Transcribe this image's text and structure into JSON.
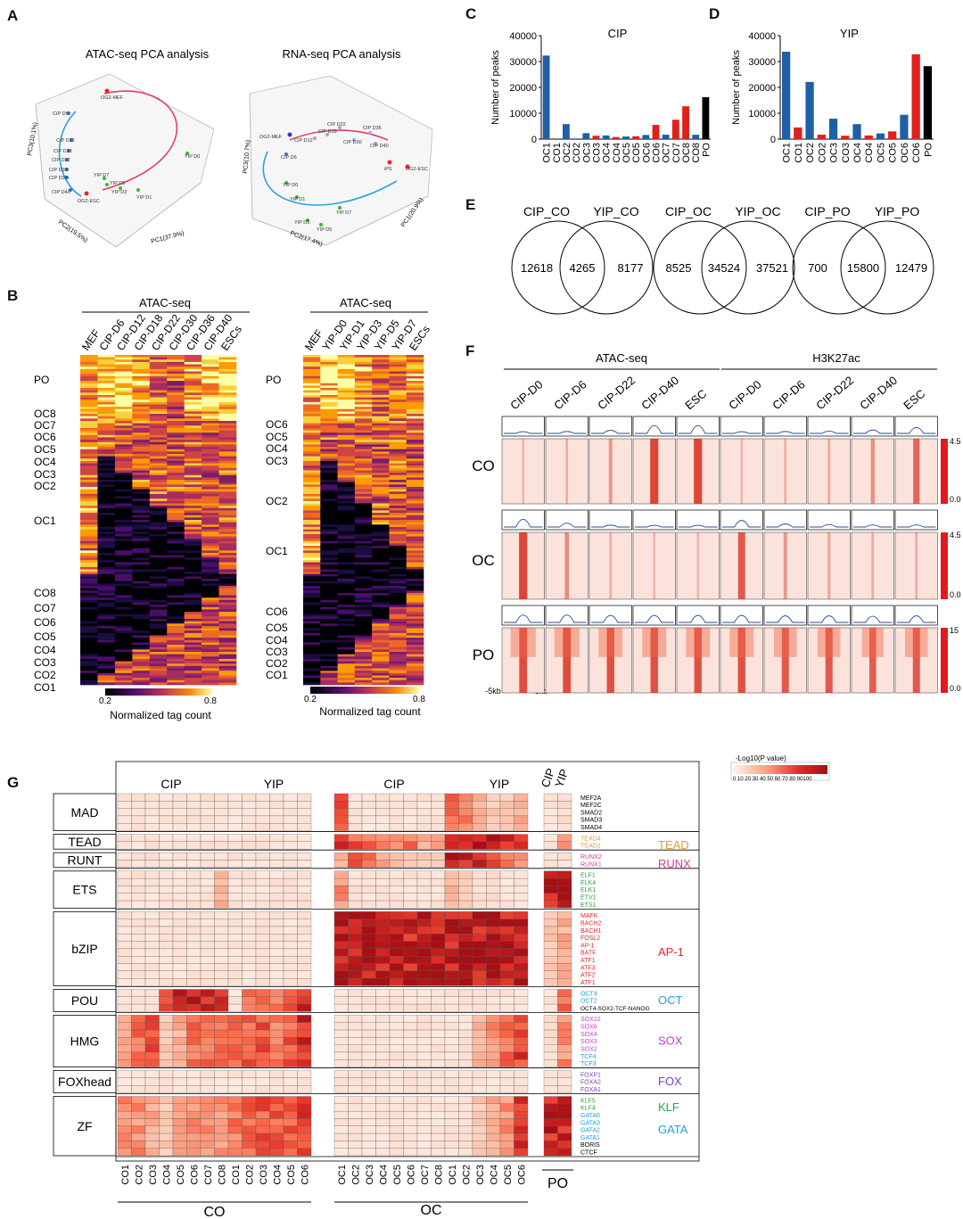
{
  "panel_labels": {
    "A": "A",
    "B": "B",
    "C": "C",
    "D": "D",
    "E": "E",
    "F": "F",
    "G": "G"
  },
  "panel_a": {
    "atac_title": "ATAC-seq PCA analysis",
    "rna_title": "RNA-seq PCA analysis",
    "atac_axes": {
      "pc1": "PC1(37.9%)",
      "pc2": "PC2(19.5%)",
      "pc3": "PC3(10.1%)"
    },
    "rna_axes": {
      "pc1": "PC1(20.9%)",
      "pc2": "PC2(17.4%)",
      "pc3": "PC3(10.7%)"
    },
    "atac_points": [
      "OG2-MEF",
      "CIP D6",
      "CIP D12",
      "CIP D18",
      "CIP D22",
      "CIP D30",
      "CIP D36",
      "CIP D40",
      "OG2-ESC",
      "YIP D7",
      "YIP D5",
      "YIP D3",
      "YIP D1",
      "YIP D0"
    ],
    "rna_points": [
      "OG2-MEF",
      "CIP D6",
      "CIP D12",
      "CIP D18",
      "CIP D22",
      "CIP D30",
      "CIP D36",
      "CIP D40",
      "iPS",
      "OG2-ESC",
      "YIP D0",
      "YIP D1",
      "YIP D3",
      "YIP D5",
      "YIP D7"
    ]
  },
  "panel_b": {
    "title_left": "ATAC-seq",
    "title_right": "ATAC-seq",
    "cols_left": [
      "MEF",
      "CIP-D6",
      "CIP-D12",
      "CIP-D18",
      "CIP-D22",
      "CIP-D30",
      "CIP-D36",
      "CIP-D40",
      "ESCs"
    ],
    "cols_right": [
      "MEF",
      "YIP-D0",
      "YIP-D1",
      "YIP-D3",
      "YIP-D5",
      "YIP-D7",
      "ESCs"
    ],
    "rows_left": [
      "PO",
      "OC8",
      "OC7",
      "OC6",
      "OC5",
      "OC4",
      "OC3",
      "OC2",
      "OC1",
      "CO8",
      "CO7",
      "CO6",
      "CO5",
      "CO4",
      "CO3",
      "CO2",
      "CO1"
    ],
    "rows_right": [
      "PO",
      "OC6",
      "OC5",
      "OC4",
      "OC3",
      "OC2",
      "OC1",
      "CO6",
      "CO5",
      "CO4",
      "CO3",
      "CO2",
      "CO1"
    ],
    "scale_min": "0.2",
    "scale_max": "0.8",
    "scale_label": "Normalized tag count"
  },
  "chart_data": [
    {
      "type": "bar",
      "title": "CIP",
      "ylabel": "Number of peaks",
      "ylim": [
        0,
        40000
      ],
      "yticks": [
        "0",
        "10000",
        "20000",
        "30000",
        "40000"
      ],
      "categories": [
        "OC1",
        "CO1",
        "OC2",
        "CO2",
        "OC3",
        "CO3",
        "OC4",
        "CO4",
        "OC5",
        "CO5",
        "OC6",
        "CO6",
        "OC7",
        "CO7",
        "OC8",
        "CO8",
        "PO"
      ],
      "values": [
        32300,
        0,
        5800,
        0,
        2300,
        1300,
        1400,
        800,
        1000,
        1100,
        1600,
        5500,
        1700,
        7500,
        12700,
        1700,
        16200
      ],
      "colors": [
        "#1f5fa8",
        "#1f5fa8",
        "#1f5fa8",
        "#1f5fa8",
        "#1f5fa8",
        "#e0201b",
        "#1f5fa8",
        "#e0201b",
        "#1f5fa8",
        "#e0201b",
        "#1f5fa8",
        "#e0201b",
        "#1f5fa8",
        "#e0201b",
        "#e0201b",
        "#1f5fa8",
        "#000000"
      ]
    },
    {
      "type": "bar",
      "title": "YIP",
      "ylabel": "Number of peaks",
      "ylim": [
        0,
        40000
      ],
      "yticks": [
        "0",
        "10000",
        "20000",
        "30000",
        "40000"
      ],
      "categories": [
        "OC1",
        "CO1",
        "OC2",
        "CO2",
        "OC3",
        "CO3",
        "OC4",
        "CO4",
        "OC5",
        "CO5",
        "OC6",
        "CO6",
        "PO"
      ],
      "values": [
        33800,
        4500,
        22100,
        1700,
        7900,
        1300,
        5800,
        1400,
        2200,
        3000,
        9400,
        32800,
        28200
      ],
      "colors": [
        "#1f5fa8",
        "#e0201b",
        "#1f5fa8",
        "#e0201b",
        "#1f5fa8",
        "#e0201b",
        "#1f5fa8",
        "#e0201b",
        "#1f5fa8",
        "#e0201b",
        "#1f5fa8",
        "#e0201b",
        "#000000"
      ]
    }
  ],
  "panel_e": {
    "venns": [
      {
        "left_label": "CIP_CO",
        "right_label": "YIP_CO",
        "left": "12618",
        "mid": "4265",
        "right": "8177"
      },
      {
        "left_label": "CIP_OC",
        "right_label": "YIP_OC",
        "left": "8525",
        "mid": "34524",
        "right": "37521"
      },
      {
        "left_label": "CIP_PO",
        "right_label": "YIP_PO",
        "left": "700",
        "mid": "15800",
        "right": "12479"
      }
    ]
  },
  "panel_f": {
    "group1": "ATAC-seq",
    "group2": "H3K27ac",
    "cols": [
      "CIP-D0",
      "CIP-D6",
      "CIP-D22",
      "CIP-D40",
      "ESC",
      "CIP-D0",
      "CIP-D6",
      "CIP-D22",
      "CIP-D40",
      "ESC"
    ],
    "rows": [
      "CO",
      "OC",
      "PO"
    ],
    "scale_max": [
      "4.5",
      "4.5",
      "15"
    ],
    "scale_min": [
      "0.0",
      "0.0",
      "0.0"
    ],
    "axis_left": "-5kb",
    "axis_right": "5kb"
  },
  "panel_g": {
    "legend_title": "-Log10(P value)",
    "legend_ticks": "0 10 20 30 40 50 60 70 80 90100",
    "top_groups": [
      "CIP",
      "YIP",
      "CIP",
      "YIP",
      "CIP",
      "YIP"
    ],
    "families": [
      "MAD",
      "TEAD",
      "RUNT",
      "ETS",
      "bZIP",
      "POU",
      "HMG",
      "FOXhead",
      "ZF"
    ],
    "motifs": [
      "MEF2A",
      "MEF2C",
      "SMAD2",
      "SMAD3",
      "SMAD4",
      "TEAD4",
      "TEAD2",
      "RUNX2",
      "RUNX1",
      "ELF1",
      "ELK4",
      "ELK1",
      "ETV1",
      "ETS1",
      "MAFK",
      "BACH2",
      "BACH1",
      "FOSL2",
      "AP-1",
      "BATF",
      "ATF1",
      "ATF3",
      "ATF2",
      "ATF1",
      "OCT4",
      "OCT2",
      "OCT4-SOX2-TCF-NANOG",
      "SOX10",
      "SOX6",
      "SOX4",
      "SOX3",
      "SOX2",
      "TCF4",
      "TCF3",
      "FOXP1",
      "FOXA2",
      "FOXA1",
      "KLF5",
      "KLF4",
      "GATA6",
      "GATA3",
      "GATA2",
      "GATA1",
      "BORIS",
      "CTCF"
    ],
    "annotations": [
      "TEAD",
      "RUNX",
      "AP-1",
      "OCT",
      "SOX",
      "FOX",
      "KLF",
      "GATA"
    ],
    "col_labels": [
      "CO1",
      "CO2",
      "CO3",
      "CO4",
      "CO5",
      "CO6",
      "CO7",
      "CO8",
      "CO1",
      "CO2",
      "CO3",
      "CO4",
      "CO5",
      "CO6",
      "OC1",
      "OC2",
      "OC3",
      "OC4",
      "OC5",
      "OC6",
      "OC7",
      "OC8",
      "OC1",
      "OC2",
      "OC3",
      "OC4",
      "OC5",
      "OC6"
    ],
    "bottom_groups": [
      "CO",
      "OC",
      "PO"
    ]
  }
}
